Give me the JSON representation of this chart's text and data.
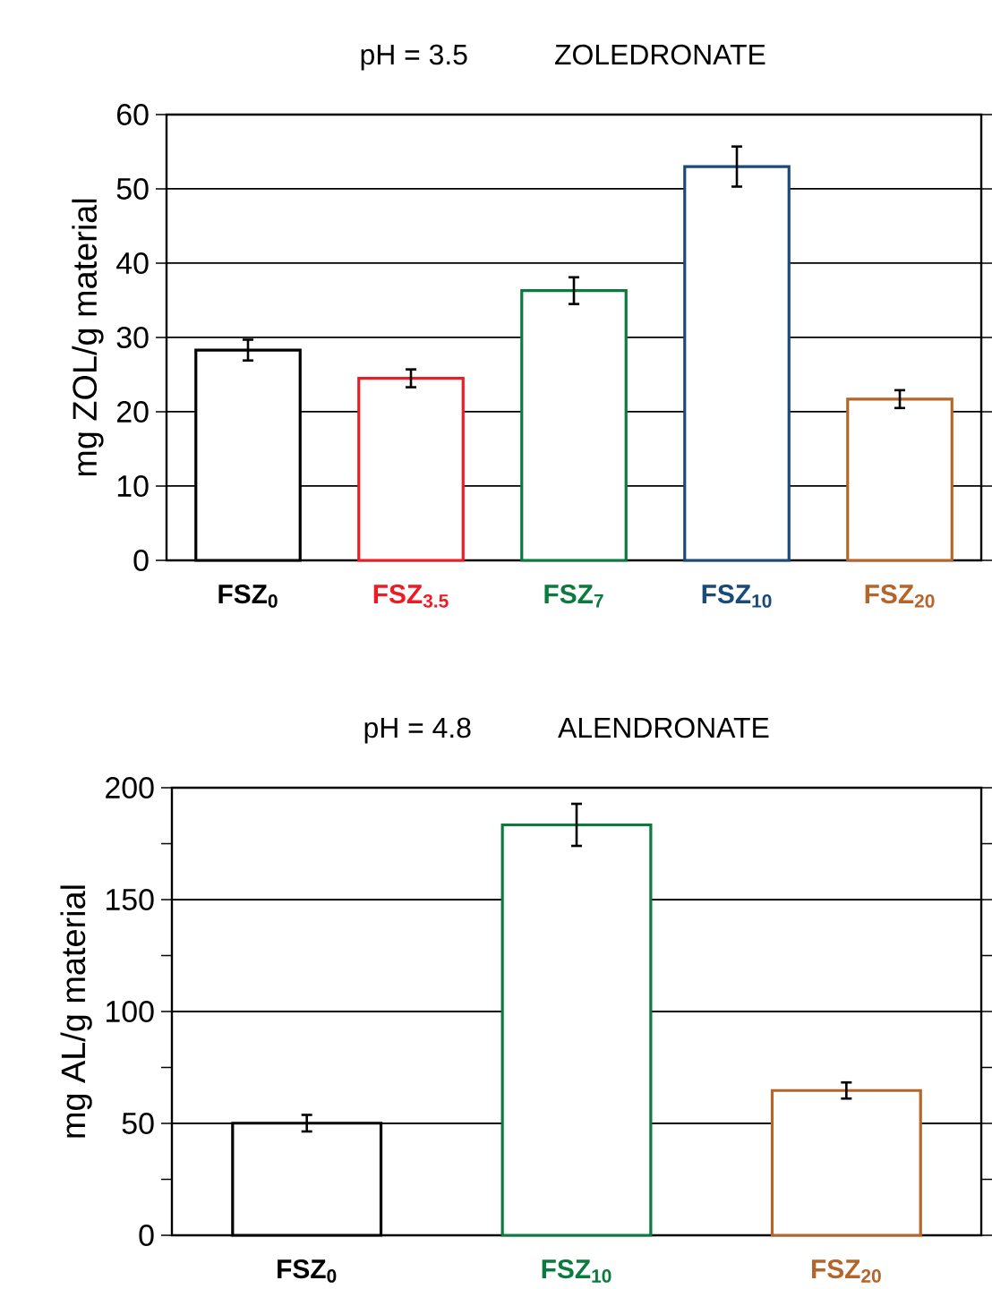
{
  "chart_data": [
    {
      "type": "bar",
      "title": "ZOLEDRONATE",
      "subtitle": "pH = 3.5",
      "ylabel": "mg ZOL/g material",
      "categories": [
        "FSZ$_{0}$",
        "FSZ$_{3.5}$",
        "FSZ$_{7}$",
        "FSZ$_{10}$",
        "FSZ$_{20}$"
      ],
      "values": [
        28.3,
        24.5,
        36.3,
        53.0,
        21.7
      ],
      "errors": [
        1.4,
        1.2,
        1.8,
        2.7,
        1.2
      ],
      "colors": [
        "#000000",
        "#ed1c24",
        "#0b7a3e",
        "#1a4a7a",
        "#b5652a"
      ],
      "ylim": [
        0,
        60
      ],
      "yticks": [
        0,
        10,
        20,
        30,
        40,
        50,
        60
      ],
      "grid": "y"
    },
    {
      "type": "bar",
      "title": "ALENDRONATE",
      "subtitle": "pH = 4.8",
      "ylabel": "mg AL/g material",
      "categories": [
        "FSZ$_{0}$",
        "FSZ$_{10}$",
        "FSZ$_{20}$"
      ],
      "values": [
        50.1,
        183.4,
        64.7
      ],
      "errors": [
        3.7,
        9.4,
        3.6
      ],
      "colors": [
        "#000000",
        "#0b7a3e",
        "#b5652a"
      ],
      "ylim": [
        0,
        200
      ],
      "yticks": [
        0,
        {
          "value": 25,
          "label": null
        },
        50,
        {
          "value": 75,
          "label": null
        },
        100,
        {
          "value": 125,
          "label": null
        },
        150,
        {
          "value": 175,
          "label": null
        },
        200
      ],
      "grid": "y"
    }
  ]
}
